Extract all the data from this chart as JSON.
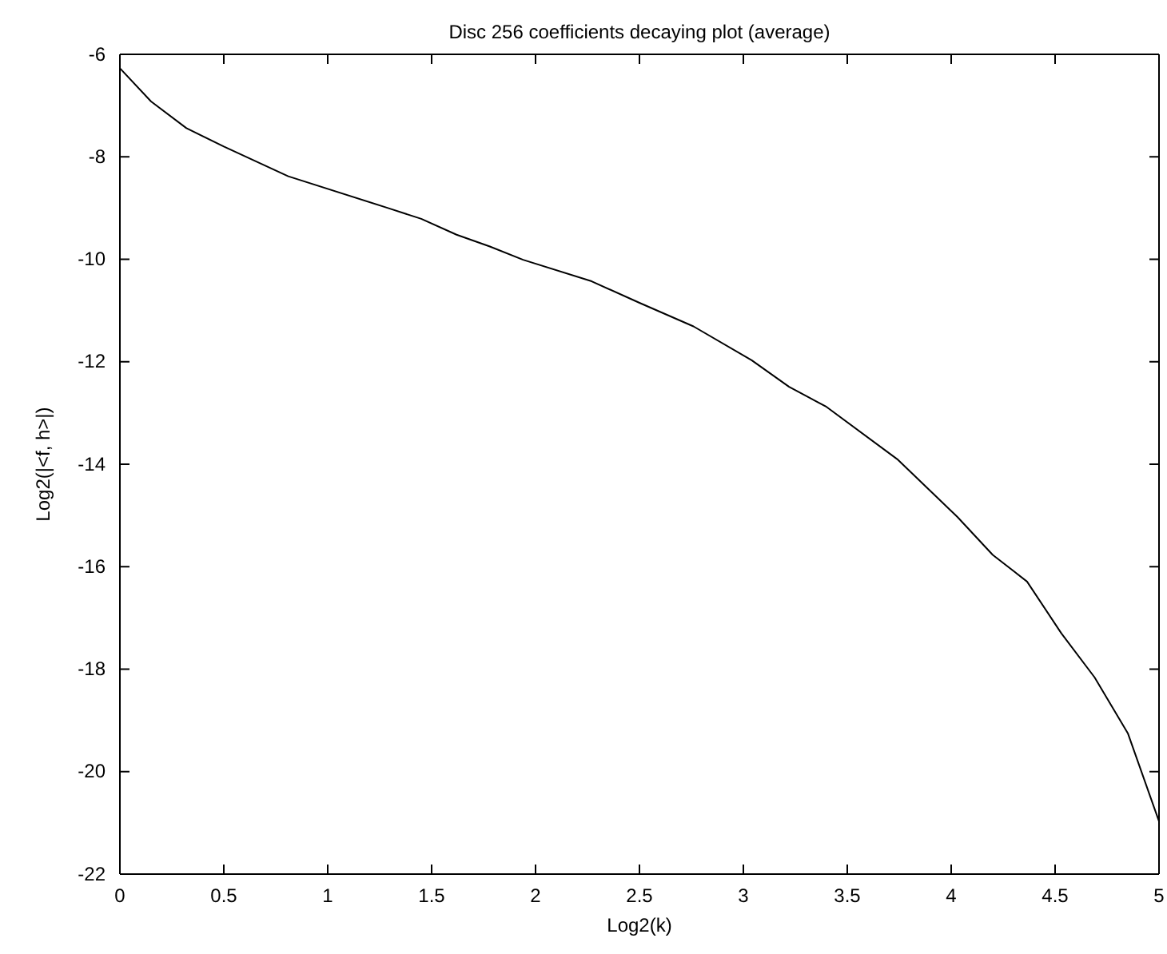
{
  "chart_data": {
    "type": "line",
    "title": "Disc 256 coefficients decaying plot (average)",
    "xlabel": "Log2(k)",
    "ylabel": "Log2(|<f, h>|)",
    "x": [
      0,
      0.15,
      0.32,
      0.5,
      0.81,
      1.29,
      1.45,
      1.62,
      1.78,
      1.94,
      2.27,
      2.5,
      2.76,
      3.04,
      3.22,
      3.4,
      3.74,
      4.03,
      4.2,
      4.365,
      4.53,
      4.69,
      4.85,
      5
    ],
    "series": [
      {
        "color": "#000000",
        "values": [
          -6.27,
          -6.92,
          -7.44,
          -7.8,
          -8.38,
          -9.0,
          -9.21,
          -9.52,
          -9.75,
          -10.01,
          -10.43,
          -10.85,
          -11.31,
          -11.97,
          -12.49,
          -12.88,
          -13.9,
          -15.03,
          -15.77,
          -16.29,
          -17.3,
          -18.16,
          -19.25,
          -20.97
        ]
      }
    ],
    "xlim": [
      0,
      5
    ],
    "xticks": [
      0,
      0.5,
      1,
      1.5,
      2,
      2.5,
      3,
      3.5,
      4,
      4.5,
      5
    ],
    "ylim": [
      -22,
      -6
    ],
    "yticks": [
      -22,
      -20,
      -18,
      -16,
      -14,
      -12,
      -10,
      -8,
      -6
    ],
    "grid": false,
    "marker": "none",
    "line_style": "solid"
  }
}
